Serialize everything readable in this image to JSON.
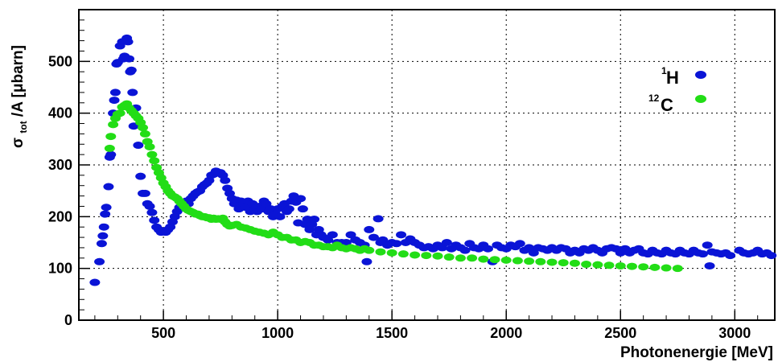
{
  "chart_data": {
    "type": "scatter",
    "xlabel": "Photonenergie [MeV]",
    "ylabel": "σ_tot/A [μbarn]",
    "ylabel_parts": {
      "main": "σ",
      "sub": "tot",
      "rest": "/A [μbarn]"
    },
    "xlim": [
      130,
      3175
    ],
    "ylim": [
      0,
      600
    ],
    "x_ticks": [
      500,
      1000,
      1500,
      2000,
      2500,
      3000
    ],
    "y_ticks": [
      0,
      100,
      200,
      300,
      400,
      500
    ],
    "grid": true,
    "legend_position": "top-right",
    "series": [
      {
        "name": "1H",
        "name_sup": "1",
        "name_base": "H",
        "color": "#0a14d6",
        "points": [
          [
            200,
            73
          ],
          [
            220,
            113
          ],
          [
            230,
            148
          ],
          [
            235,
            163
          ],
          [
            240,
            180
          ],
          [
            245,
            205
          ],
          [
            250,
            218
          ],
          [
            260,
            258
          ],
          [
            265,
            315
          ],
          [
            270,
            320
          ],
          [
            280,
            400
          ],
          [
            285,
            425
          ],
          [
            290,
            440
          ],
          [
            295,
            495
          ],
          [
            300,
            498
          ],
          [
            310,
            530
          ],
          [
            320,
            538
          ],
          [
            325,
            505
          ],
          [
            330,
            510
          ],
          [
            340,
            545
          ],
          [
            345,
            538
          ],
          [
            350,
            505
          ],
          [
            355,
            480
          ],
          [
            360,
            483
          ],
          [
            365,
            440
          ],
          [
            370,
            375
          ],
          [
            380,
            410
          ],
          [
            390,
            338
          ],
          [
            400,
            278
          ],
          [
            410,
            245
          ],
          [
            420,
            245
          ],
          [
            430,
            225
          ],
          [
            440,
            220
          ],
          [
            450,
            208
          ],
          [
            460,
            193
          ],
          [
            470,
            180
          ],
          [
            480,
            175
          ],
          [
            490,
            170
          ],
          [
            500,
            172
          ],
          [
            510,
            170
          ],
          [
            520,
            175
          ],
          [
            530,
            180
          ],
          [
            540,
            190
          ],
          [
            550,
            200
          ],
          [
            560,
            210
          ],
          [
            570,
            218
          ],
          [
            580,
            220
          ],
          [
            590,
            225
          ],
          [
            600,
            230
          ],
          [
            610,
            225
          ],
          [
            620,
            235
          ],
          [
            630,
            240
          ],
          [
            640,
            245
          ],
          [
            650,
            248
          ],
          [
            660,
            250
          ],
          [
            670,
            258
          ],
          [
            680,
            262
          ],
          [
            690,
            265
          ],
          [
            700,
            270
          ],
          [
            710,
            280
          ],
          [
            720,
            282
          ],
          [
            730,
            288
          ],
          [
            740,
            285
          ],
          [
            750,
            285
          ],
          [
            760,
            280
          ],
          [
            770,
            270
          ],
          [
            780,
            255
          ],
          [
            790,
            245
          ],
          [
            800,
            235
          ],
          [
            810,
            225
          ],
          [
            820,
            232
          ],
          [
            830,
            215
          ],
          [
            840,
            230
          ],
          [
            850,
            225
          ],
          [
            860,
            218
          ],
          [
            870,
            230
          ],
          [
            880,
            210
          ],
          [
            890,
            225
          ],
          [
            900,
            215
          ],
          [
            910,
            210
          ],
          [
            920,
            220
          ],
          [
            930,
            215
          ],
          [
            940,
            230
          ],
          [
            950,
            225
          ],
          [
            960,
            210
          ],
          [
            970,
            215
          ],
          [
            980,
            200
          ],
          [
            990,
            205
          ],
          [
            1000,
            215
          ],
          [
            1010,
            200
          ],
          [
            1020,
            220
          ],
          [
            1030,
            225
          ],
          [
            1040,
            210
          ],
          [
            1050,
            215
          ],
          [
            1060,
            230
          ],
          [
            1070,
            240
          ],
          [
            1080,
            228
          ],
          [
            1090,
            188
          ],
          [
            1100,
            235
          ],
          [
            1110,
            215
          ],
          [
            1120,
            185
          ],
          [
            1130,
            195
          ],
          [
            1140,
            175
          ],
          [
            1150,
            185
          ],
          [
            1160,
            195
          ],
          [
            1170,
            165
          ],
          [
            1180,
            175
          ],
          [
            1190,
            165
          ],
          [
            1200,
            160
          ],
          [
            1220,
            155
          ],
          [
            1240,
            165
          ],
          [
            1260,
            150
          ],
          [
            1280,
            150
          ],
          [
            1300,
            150
          ],
          [
            1320,
            165
          ],
          [
            1340,
            155
          ],
          [
            1360,
            150
          ],
          [
            1380,
            145
          ],
          [
            1390,
            113
          ],
          [
            1400,
            175
          ],
          [
            1420,
            160
          ],
          [
            1440,
            196
          ],
          [
            1450,
            150
          ],
          [
            1460,
            155
          ],
          [
            1480,
            145
          ],
          [
            1500,
            150
          ],
          [
            1520,
            148
          ],
          [
            1540,
            165
          ],
          [
            1560,
            150
          ],
          [
            1580,
            157
          ],
          [
            1600,
            150
          ],
          [
            1620,
            145
          ],
          [
            1640,
            140
          ],
          [
            1660,
            142
          ],
          [
            1680,
            138
          ],
          [
            1700,
            145
          ],
          [
            1720,
            140
          ],
          [
            1740,
            150
          ],
          [
            1760,
            138
          ],
          [
            1780,
            145
          ],
          [
            1800,
            140
          ],
          [
            1820,
            135
          ],
          [
            1840,
            148
          ],
          [
            1860,
            140
          ],
          [
            1880,
            138
          ],
          [
            1900,
            145
          ],
          [
            1920,
            138
          ],
          [
            1940,
            113
          ],
          [
            1960,
            145
          ],
          [
            1980,
            140
          ],
          [
            2000,
            138
          ],
          [
            2020,
            145
          ],
          [
            2040,
            142
          ],
          [
            2060,
            148
          ],
          [
            2080,
            135
          ],
          [
            2100,
            140
          ],
          [
            2120,
            130
          ],
          [
            2140,
            140
          ],
          [
            2160,
            138
          ],
          [
            2180,
            135
          ],
          [
            2200,
            140
          ],
          [
            2220,
            135
          ],
          [
            2240,
            140
          ],
          [
            2260,
            138
          ],
          [
            2280,
            130
          ],
          [
            2300,
            135
          ],
          [
            2320,
            130
          ],
          [
            2340,
            138
          ],
          [
            2360,
            135
          ],
          [
            2380,
            140
          ],
          [
            2400,
            135
          ],
          [
            2420,
            130
          ],
          [
            2440,
            138
          ],
          [
            2460,
            140
          ],
          [
            2480,
            138
          ],
          [
            2500,
            130
          ],
          [
            2520,
            138
          ],
          [
            2540,
            130
          ],
          [
            2560,
            135
          ],
          [
            2580,
            138
          ],
          [
            2600,
            130
          ],
          [
            2620,
            128
          ],
          [
            2640,
            135
          ],
          [
            2660,
            130
          ],
          [
            2680,
            128
          ],
          [
            2700,
            135
          ],
          [
            2720,
            130
          ],
          [
            2740,
            128
          ],
          [
            2760,
            135
          ],
          [
            2780,
            130
          ],
          [
            2800,
            128
          ],
          [
            2820,
            135
          ],
          [
            2840,
            130
          ],
          [
            2860,
            128
          ],
          [
            2880,
            145
          ],
          [
            2890,
            105
          ],
          [
            2900,
            132
          ],
          [
            2920,
            130
          ],
          [
            2940,
            128
          ],
          [
            2960,
            130
          ],
          [
            2980,
            125
          ],
          [
            3020,
            135
          ],
          [
            3040,
            130
          ],
          [
            3060,
            128
          ],
          [
            3080,
            130
          ],
          [
            3100,
            135
          ],
          [
            3120,
            128
          ],
          [
            3140,
            130
          ],
          [
            3160,
            125
          ]
        ]
      },
      {
        "name": "12C",
        "name_sup": "12",
        "name_base": "C",
        "color": "#22dd16",
        "points": [
          [
            265,
            332
          ],
          [
            270,
            355
          ],
          [
            280,
            378
          ],
          [
            290,
            390
          ],
          [
            300,
            398
          ],
          [
            310,
            400
          ],
          [
            320,
            412
          ],
          [
            330,
            415
          ],
          [
            340,
            418
          ],
          [
            350,
            410
          ],
          [
            360,
            405
          ],
          [
            370,
            400
          ],
          [
            380,
            395
          ],
          [
            390,
            390
          ],
          [
            400,
            382
          ],
          [
            410,
            372
          ],
          [
            420,
            360
          ],
          [
            430,
            345
          ],
          [
            440,
            335
          ],
          [
            450,
            320
          ],
          [
            460,
            308
          ],
          [
            470,
            295
          ],
          [
            480,
            285
          ],
          [
            490,
            275
          ],
          [
            500,
            265
          ],
          [
            510,
            258
          ],
          [
            520,
            250
          ],
          [
            530,
            245
          ],
          [
            540,
            240
          ],
          [
            550,
            238
          ],
          [
            560,
            235
          ],
          [
            570,
            230
          ],
          [
            580,
            225
          ],
          [
            590,
            220
          ],
          [
            600,
            215
          ],
          [
            610,
            212
          ],
          [
            620,
            210
          ],
          [
            630,
            208
          ],
          [
            640,
            205
          ],
          [
            650,
            205
          ],
          [
            660,
            202
          ],
          [
            670,
            200
          ],
          [
            680,
            200
          ],
          [
            690,
            198
          ],
          [
            700,
            198
          ],
          [
            710,
            195
          ],
          [
            720,
            197
          ],
          [
            730,
            195
          ],
          [
            740,
            196
          ],
          [
            750,
            195
          ],
          [
            760,
            197
          ],
          [
            770,
            190
          ],
          [
            780,
            185
          ],
          [
            790,
            182
          ],
          [
            800,
            183
          ],
          [
            820,
            185
          ],
          [
            840,
            180
          ],
          [
            860,
            178
          ],
          [
            880,
            175
          ],
          [
            900,
            172
          ],
          [
            920,
            170
          ],
          [
            940,
            168
          ],
          [
            960,
            165
          ],
          [
            980,
            170
          ],
          [
            1000,
            165
          ],
          [
            1020,
            160
          ],
          [
            1040,
            160
          ],
          [
            1060,
            155
          ],
          [
            1080,
            155
          ],
          [
            1100,
            150
          ],
          [
            1120,
            152
          ],
          [
            1140,
            150
          ],
          [
            1160,
            145
          ],
          [
            1180,
            145
          ],
          [
            1200,
            142
          ],
          [
            1220,
            142
          ],
          [
            1240,
            140
          ],
          [
            1260,
            145
          ],
          [
            1280,
            140
          ],
          [
            1300,
            138
          ],
          [
            1320,
            140
          ],
          [
            1340,
            138
          ],
          [
            1360,
            135
          ],
          [
            1380,
            138
          ],
          [
            1400,
            135
          ],
          [
            1450,
            132
          ],
          [
            1500,
            130
          ],
          [
            1550,
            128
          ],
          [
            1600,
            126
          ],
          [
            1650,
            125
          ],
          [
            1700,
            124
          ],
          [
            1750,
            122
          ],
          [
            1800,
            120
          ],
          [
            1850,
            120
          ],
          [
            1900,
            118
          ],
          [
            1950,
            117
          ],
          [
            2000,
            116
          ],
          [
            2050,
            115
          ],
          [
            2100,
            114
          ],
          [
            2150,
            113
          ],
          [
            2200,
            112
          ],
          [
            2250,
            111
          ],
          [
            2300,
            110
          ],
          [
            2350,
            108
          ],
          [
            2400,
            107
          ],
          [
            2450,
            106
          ],
          [
            2500,
            105
          ],
          [
            2550,
            104
          ],
          [
            2600,
            103
          ],
          [
            2650,
            102
          ],
          [
            2700,
            101
          ],
          [
            2750,
            100
          ]
        ]
      }
    ]
  }
}
